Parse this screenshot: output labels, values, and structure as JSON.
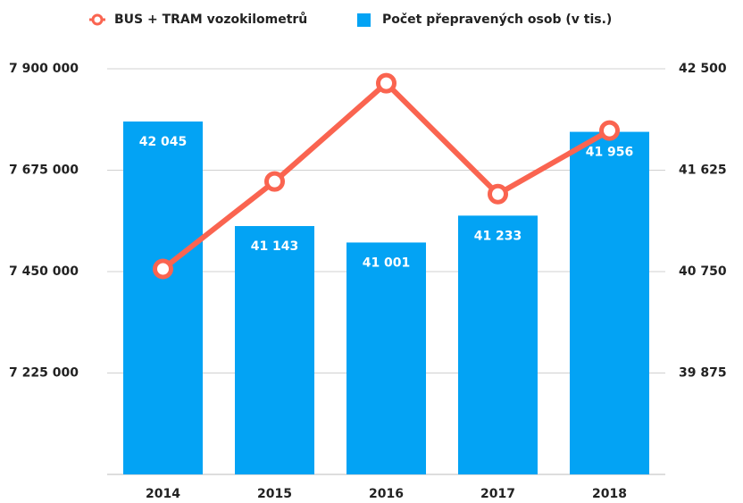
{
  "chart_data": {
    "type": "combo",
    "categories": [
      "2014",
      "2015",
      "2016",
      "2017",
      "2018"
    ],
    "series": [
      {
        "name": "BUS + TRAM vozokilometrů",
        "type": "line",
        "color": "#fa6450",
        "values": [
          7456000,
          7650000,
          7868000,
          7622000,
          7763000
        ]
      },
      {
        "name": "Počet přepravených osob (v tis.)",
        "type": "bar",
        "axis": "y2",
        "color": "#03a3f4",
        "values": [
          42045,
          41143,
          41001,
          41233,
          41956
        ],
        "value_labels": [
          "42 045",
          "41 143",
          "41 001",
          "41 233",
          "41 956"
        ]
      }
    ],
    "ylim": [
      7000000,
      7900000
    ],
    "yticks": [
      {
        "value": 7225000,
        "label": "7 225 000"
      },
      {
        "value": 7450000,
        "label": "7 450 000"
      },
      {
        "value": 7675000,
        "label": "7 675 000"
      },
      {
        "value": 7900000,
        "label": "7 900 000"
      }
    ],
    "y2lim": [
      39000,
      42500
    ],
    "y2ticks": [
      {
        "value": 39875,
        "label": "39 875"
      },
      {
        "value": 40750,
        "label": "40 750"
      },
      {
        "value": 41625,
        "label": "41 625"
      },
      {
        "value": 42500,
        "label": "42 500"
      }
    ],
    "grid": true,
    "legend": "top"
  }
}
